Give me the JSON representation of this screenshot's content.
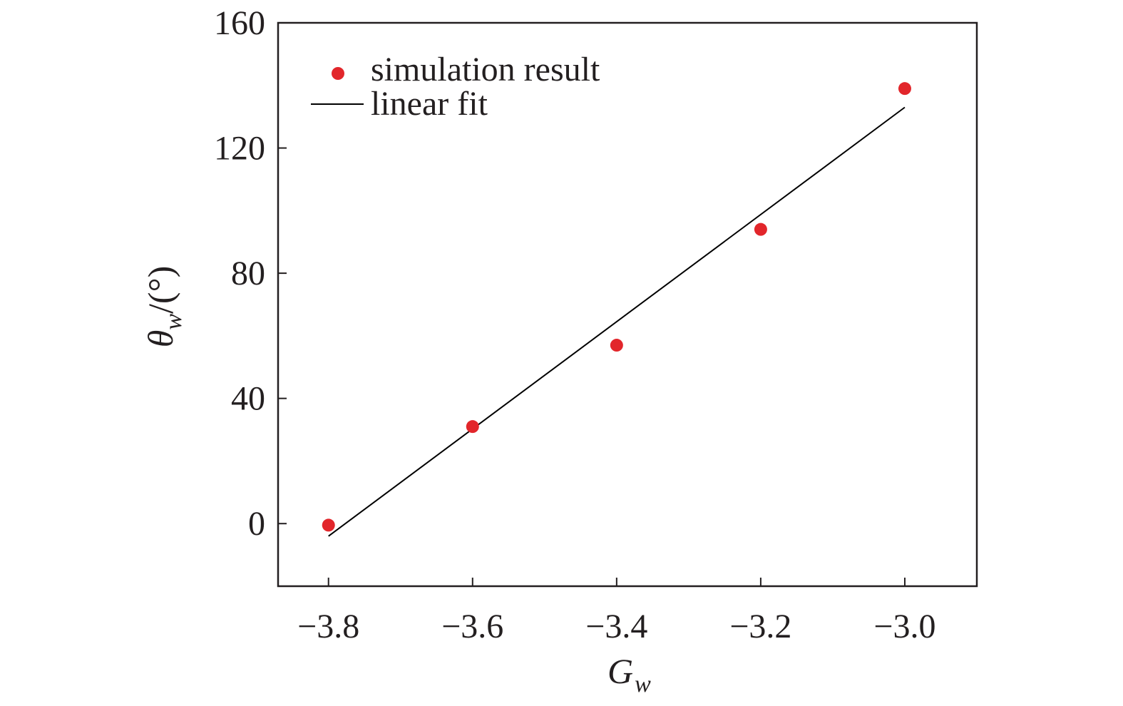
{
  "chart_data": {
    "type": "scatter",
    "title": "",
    "xlabel": "G",
    "xlabel_sub": "w",
    "ylabel": "θ",
    "ylabel_sub": "w",
    "ylabel_unit": "/(°)",
    "xlim": [
      -3.87,
      -2.9
    ],
    "ylim": [
      -20,
      160
    ],
    "x_ticks": [
      -3.8,
      -3.6,
      -3.4,
      -3.2,
      -3.0
    ],
    "x_tick_labels": [
      "−3.8",
      "−3.6",
      "−3.4",
      "−3.2",
      "−3.0"
    ],
    "y_ticks": [
      0,
      40,
      80,
      120,
      160
    ],
    "y_tick_labels": [
      "0",
      "40",
      "80",
      "120",
      "160"
    ],
    "grid": false,
    "legend_position": "top-left",
    "series": [
      {
        "name": "simulation result",
        "kind": "scatter",
        "color": "#e2262b",
        "x": [
          -3.8,
          -3.6,
          -3.4,
          -3.2,
          -3.0
        ],
        "y": [
          -0.5,
          31,
          57,
          94,
          139
        ]
      },
      {
        "name": "linear fit",
        "kind": "line",
        "color": "#000000",
        "x": [
          -3.8,
          -3.0
        ],
        "y": [
          -4,
          133
        ]
      }
    ]
  }
}
